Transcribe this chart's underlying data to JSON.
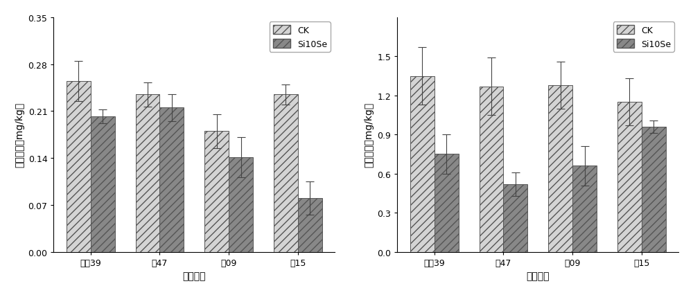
{
  "categories": [
    "中无39",
    "金47",
    "金09",
    "用15"
  ],
  "cd_CK": [
    0.255,
    0.235,
    0.18,
    0.235
  ],
  "cd_Si10Se": [
    0.202,
    0.215,
    0.141,
    0.08
  ],
  "cd_CK_err": [
    0.03,
    0.018,
    0.025,
    0.015
  ],
  "cd_Si10Se_err": [
    0.01,
    0.02,
    0.03,
    0.025
  ],
  "as_CK": [
    1.35,
    1.27,
    1.28,
    1.15
  ],
  "as_Si10Se": [
    0.75,
    0.52,
    0.66,
    0.96
  ],
  "as_CK_err": [
    0.22,
    0.22,
    0.18,
    0.18
  ],
  "as_Si10Se_err": [
    0.15,
    0.09,
    0.15,
    0.05
  ],
  "cd_ylabel": "粒镖含量（mg/kg）",
  "as_ylabel": "粒硕含量（mg/kg）",
  "xlabel": "水稺品种",
  "legend_CK": "CK",
  "legend_Si10Se": "Si10Se",
  "cd_ylim": [
    0,
    0.35
  ],
  "as_ylim": [
    0,
    1.8
  ],
  "cd_yticks": [
    0.0,
    0.07,
    0.14,
    0.21,
    0.28,
    0.35
  ],
  "as_yticks": [
    0.0,
    0.3,
    0.6,
    0.9,
    1.2,
    1.5
  ],
  "bar_width": 0.35,
  "ck_facecolor": "#d4d4d4",
  "si10se_facecolor": "#888888",
  "hatch_ck": "///",
  "hatch_si10se": "///",
  "edge_color": "#555555"
}
